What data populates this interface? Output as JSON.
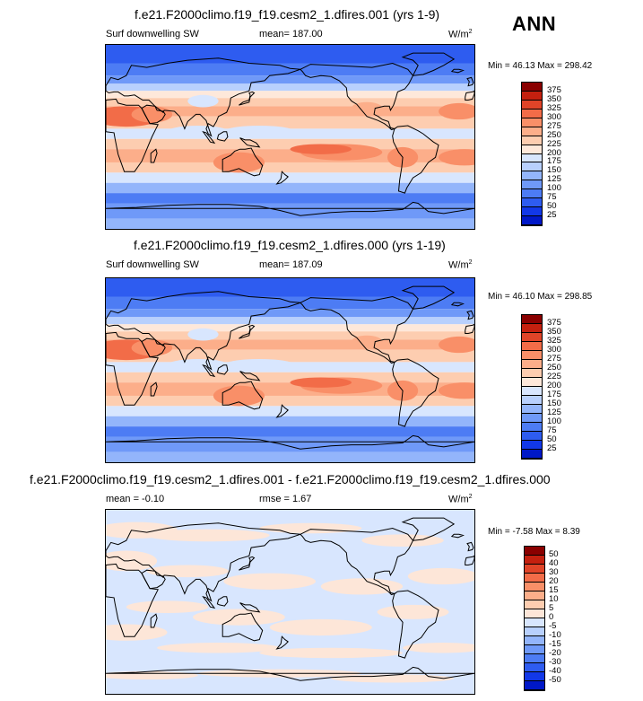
{
  "season": "ANN",
  "colors": {
    "sw": [
      "#00008a",
      "#0018c8",
      "#1238e8",
      "#2e5cf0",
      "#4d7cf4",
      "#6f99f8",
      "#93b5fb",
      "#b8d0fd",
      "#d8e6fe",
      "#fee8da",
      "#fdcdb0",
      "#fcae8a",
      "#f98f68",
      "#f26c48",
      "#e04428",
      "#c4200f",
      "#8a0000"
    ],
    "diff": [
      "#00008a",
      "#0018c8",
      "#1238e8",
      "#2e5cf0",
      "#4d7cf4",
      "#6f99f8",
      "#93b5fb",
      "#b8d0fd",
      "#d8e6fe",
      "#fde6d8",
      "#fdcdb0",
      "#fcae8a",
      "#f98f68",
      "#f26c48",
      "#e04428",
      "#c4200f",
      "#8a0000"
    ]
  },
  "panels": [
    {
      "id": "panel1",
      "title": "f.e21.F2000climo.f19_f19.cesm2_1.dfires.001 (yrs 1-9)",
      "variable": "Surf downwelling SW",
      "stat": "mean= 187.00",
      "units": "W/m",
      "units_exp": "2",
      "minmax": "Min =  46.13 Max = 298.42",
      "colorbar_labels": [
        "375",
        "350",
        "325",
        "300",
        "275",
        "250",
        "225",
        "200",
        "175",
        "150",
        "125",
        "100",
        "75",
        "50",
        "25"
      ]
    },
    {
      "id": "panel2",
      "title": "f.e21.F2000climo.f19_f19.cesm2_1.dfires.000 (yrs 1-19)",
      "variable": "Surf downwelling SW",
      "stat": "mean= 187.09",
      "units": "W/m",
      "units_exp": "2",
      "minmax": "Min =  46.10 Max = 298.85",
      "colorbar_labels": [
        "375",
        "350",
        "325",
        "300",
        "275",
        "250",
        "225",
        "200",
        "175",
        "150",
        "125",
        "100",
        "75",
        "50",
        "25"
      ]
    },
    {
      "id": "panel3",
      "title": "f.e21.F2000climo.f19_f19.cesm2_1.dfires.001 - f.e21.F2000climo.f19_f19.cesm2_1.dfires.000",
      "stat": "mean =  -0.10",
      "rmse": "rmse =   1.67",
      "units": "W/m",
      "units_exp": "2",
      "minmax": "Min =  -7.58 Max =   8.39",
      "colorbar_labels": [
        "50",
        "40",
        "30",
        "20",
        "15",
        "10",
        "5",
        "0",
        "-5",
        "-10",
        "-15",
        "-20",
        "-30",
        "-40",
        "-50"
      ]
    }
  ],
  "chart_data": [
    {
      "type": "heatmap",
      "title": "f.e21.F2000climo.f19_f19.cesm2_1.dfires.001 (yrs 1-9)",
      "variable": "Surf downwelling SW",
      "units": "W/m2",
      "mean": 187.0,
      "min": 46.13,
      "max": 298.42,
      "levels": [
        25,
        50,
        75,
        100,
        125,
        150,
        175,
        200,
        225,
        250,
        275,
        300,
        325,
        350,
        375
      ]
    },
    {
      "type": "heatmap",
      "title": "f.e21.F2000climo.f19_f19.cesm2_1.dfires.000 (yrs 1-19)",
      "variable": "Surf downwelling SW",
      "units": "W/m2",
      "mean": 187.09,
      "min": 46.1,
      "max": 298.85,
      "levels": [
        25,
        50,
        75,
        100,
        125,
        150,
        175,
        200,
        225,
        250,
        275,
        300,
        325,
        350,
        375
      ]
    },
    {
      "type": "heatmap",
      "title": "f.e21.F2000climo.f19_f19.cesm2_1.dfires.001 - f.e21.F2000climo.f19_f19.cesm2_1.dfires.000",
      "units": "W/m2",
      "mean": -0.1,
      "rmse": 1.67,
      "min": -7.58,
      "max": 8.39,
      "levels": [
        -50,
        -40,
        -30,
        -20,
        -15,
        -10,
        -5,
        0,
        5,
        10,
        15,
        20,
        30,
        40,
        50
      ]
    }
  ]
}
